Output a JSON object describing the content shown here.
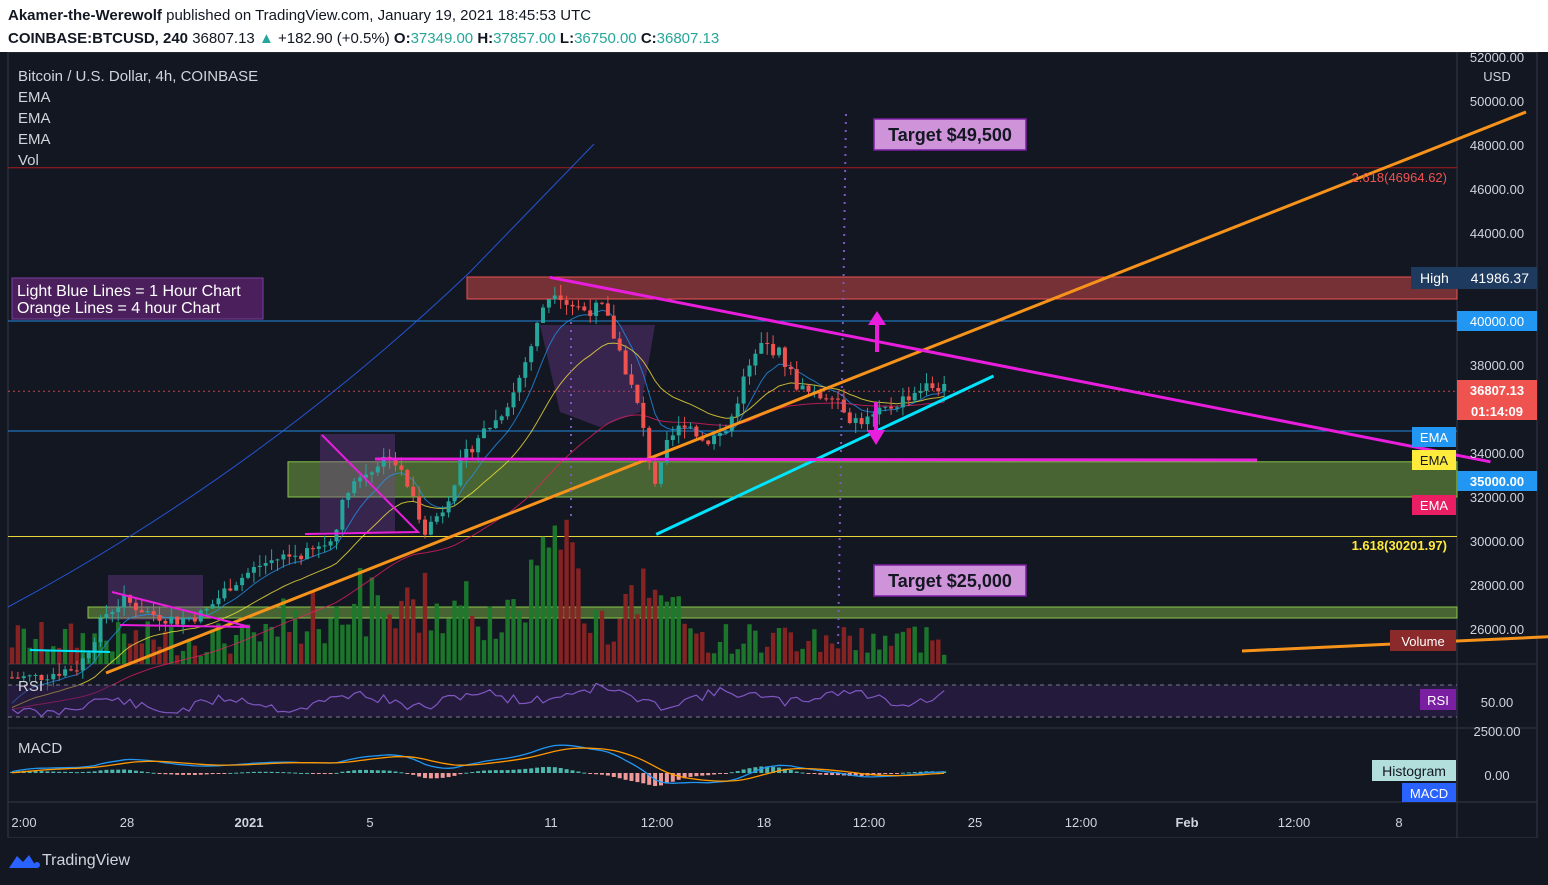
{
  "header": {
    "author": "Akamer-the-Werewolf",
    "published": "published on TradingView.com, January 19, 2021 18:45:53 UTC",
    "symbol": "COINBASE:BTCUSD, 240",
    "last": "36807.13",
    "change": "+182.90 (+0.5%)",
    "open_label": "O:",
    "open": "37349.00",
    "high_label": "H:",
    "high": "37857.00",
    "low_label": "L:",
    "low": "36750.00",
    "close_label": "C:",
    "close": "36807.13"
  },
  "legend": {
    "title": "Bitcoin / U.S. Dollar, 4h, COINBASE",
    "ema1": "EMA",
    "ema2": "EMA",
    "ema3": "EMA",
    "vol": "Vol"
  },
  "note": {
    "line1": "Light Blue Lines = 1 Hour Chart",
    "line2": "Orange Lines = 4 hour Chart"
  },
  "targets": {
    "up": "Target $49,500",
    "down": "Target $25,000"
  },
  "fib": {
    "upper": "2.618(46964.62)",
    "lower": "1.618(30201.97)"
  },
  "price_axis": {
    "currency": "USD",
    "ticks": [
      "52000.00",
      "50000.00",
      "48000.00",
      "46000.00",
      "44000.00",
      "42000.00",
      "40000.00",
      "38000.00",
      "36000.00",
      "34000.00",
      "32000.00",
      "30000.00",
      "28000.00",
      "26000.00"
    ],
    "high_tag": "High",
    "high_value": "41986.37",
    "level_40k": "40000.00",
    "last_price": "36807.13",
    "countdown": "01:14:09",
    "ema_labels": [
      "EMA",
      "EMA",
      "EMA"
    ],
    "level_35k": "35000.00",
    "volume_label": "Volume"
  },
  "rsi": {
    "label": "RSI",
    "tag": "RSI",
    "tick": "50.00"
  },
  "macd": {
    "label": "MACD",
    "tick_top": "2500.00",
    "tick_zero": "0.00",
    "hist_tag": "Histogram",
    "macd_tag": "MACD"
  },
  "time_axis": [
    "2:00",
    "28",
    "2021",
    "5",
    "11",
    "12:00",
    "18",
    "12:00",
    "25",
    "12:00",
    "Feb",
    "12:00",
    "8"
  ],
  "footer": {
    "brand": "TradingView"
  },
  "colors": {
    "bg": "#131722",
    "up": "#26a69a",
    "down": "#ef5350",
    "magenta": "#e91edd",
    "orange": "#f7931a",
    "cyan": "#00e5ff",
    "zone_green": "#8bc34a",
    "zone_red": "#ef5350"
  },
  "chart_data": {
    "type": "candlestick",
    "title": "Bitcoin / U.S. Dollar, 4h, COINBASE",
    "ylabel": "USD",
    "ylim": [
      25000,
      52500
    ],
    "x_range": [
      "2020-12-25",
      "2021-02-09"
    ],
    "close_path": [
      [
        "2020-12-25T00:00",
        23800
      ],
      [
        "2020-12-26T06:00",
        24300
      ],
      [
        "2020-12-27T00:00",
        26700
      ],
      [
        "2020-12-27T12:00",
        27300
      ],
      [
        "2020-12-28T06:00",
        26700
      ],
      [
        "2020-12-29T00:00",
        26400
      ],
      [
        "2020-12-29T18:00",
        26700
      ],
      [
        "2020-12-30T12:00",
        28000
      ],
      [
        "2020-12-31T08:00",
        28900
      ],
      [
        "2021-01-01T00:00",
        29300
      ],
      [
        "2021-01-01T16:00",
        29400
      ],
      [
        "2021-01-02T08:00",
        30000
      ],
      [
        "2021-01-02T20:00",
        32500
      ],
      [
        "2021-01-03T12:00",
        33300
      ],
      [
        "2021-01-04T00:00",
        34000
      ],
      [
        "2021-01-04T12:00",
        32500
      ],
      [
        "2021-01-05T00:00",
        30500
      ],
      [
        "2021-01-05T12:00",
        31500
      ],
      [
        "2021-01-06T00:00",
        33500
      ],
      [
        "2021-01-06T12:00",
        34800
      ],
      [
        "2021-01-07T00:00",
        35500
      ],
      [
        "2021-01-07T12:00",
        36800
      ],
      [
        "2021-01-08T00:00",
        39000
      ],
      [
        "2021-01-08T08:00",
        40800
      ],
      [
        "2021-01-08T16:00",
        41500
      ],
      [
        "2021-01-09T00:00",
        40800
      ],
      [
        "2021-01-09T12:00",
        40500
      ],
      [
        "2021-01-10T00:00",
        40600
      ],
      [
        "2021-01-10T12:00",
        38500
      ],
      [
        "2021-01-11T00:00",
        36000
      ],
      [
        "2021-01-11T08:00",
        33500
      ],
      [
        "2021-01-11T12:00",
        32500
      ],
      [
        "2021-01-11T20:00",
        34500
      ],
      [
        "2021-01-12T08:00",
        35500
      ],
      [
        "2021-01-12T20:00",
        34500
      ],
      [
        "2021-01-13T12:00",
        35000
      ],
      [
        "2021-01-14T00:00",
        37500
      ],
      [
        "2021-01-14T12:00",
        39000
      ],
      [
        "2021-01-15T00:00",
        38500
      ],
      [
        "2021-01-15T12:00",
        37000
      ],
      [
        "2021-01-16T00:00",
        36500
      ],
      [
        "2021-01-16T12:00",
        36800
      ],
      [
        "2021-01-17T00:00",
        35500
      ],
      [
        "2021-01-17T12:00",
        35500
      ],
      [
        "2021-01-18T00:00",
        36000
      ],
      [
        "2021-01-18T12:00",
        36500
      ],
      [
        "2021-01-19T00:00",
        37000
      ],
      [
        "2021-01-19T12:00",
        37000
      ],
      [
        "2021-01-19T16:00",
        36807.13
      ]
    ],
    "horizontal_levels": [
      {
        "name": "2.618",
        "value": 46964.62
      },
      {
        "name": "40000",
        "value": 40000
      },
      {
        "name": "35000",
        "value": 35000
      },
      {
        "name": "1.618",
        "value": 30201.97
      },
      {
        "name": "last",
        "value": 36807.13
      }
    ],
    "zones": [
      {
        "color": "red",
        "from": 41000,
        "to": 42000
      },
      {
        "color": "green",
        "from": 32000,
        "to": 33600
      },
      {
        "color": "green",
        "from": 26500,
        "to": 27000
      }
    ],
    "trendlines": [
      {
        "color": "orange",
        "from": [
          "2020-12-27T00:00",
          24000
        ],
        "to": [
          "2021-02-05T00:00",
          49500
        ]
      },
      {
        "color": "magenta",
        "from": [
          "2021-01-08T12:00",
          41986.37
        ],
        "to": [
          "2021-02-04T00:00",
          33600
        ]
      },
      {
        "color": "cyan",
        "from": [
          "2021-01-11T12:00",
          30300
        ],
        "to": [
          "2021-01-21T00:00",
          37500
        ]
      },
      {
        "color": "orange",
        "from": [
          "2021-01-28T00:00",
          25000
        ],
        "to": [
          "2021-02-09T00:00",
          25900
        ]
      }
    ]
  }
}
